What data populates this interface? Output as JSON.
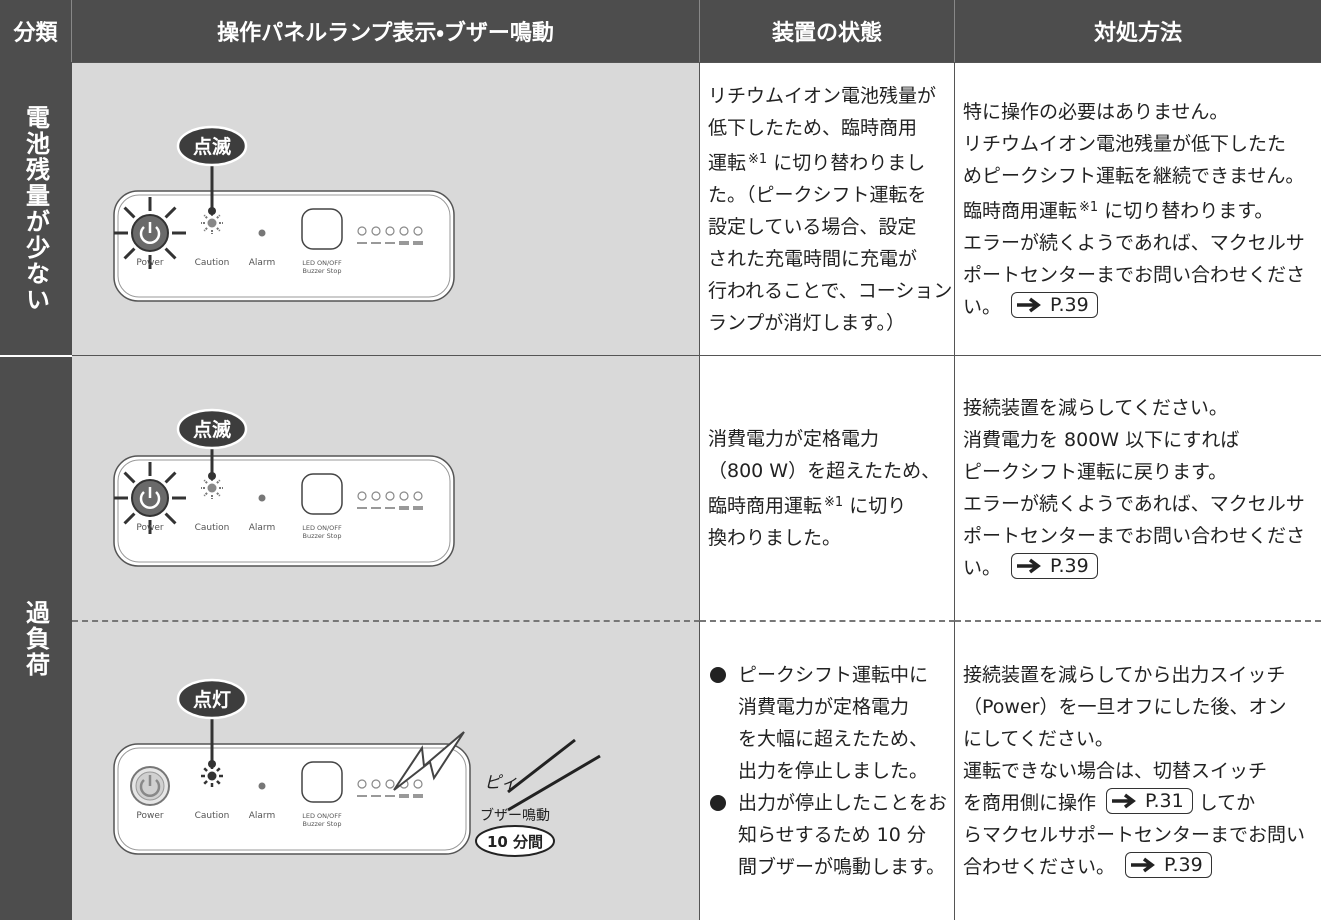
{
  "header": {
    "columns": [
      "分類",
      "操作パネルランプ表示・ブザー鳴動",
      "装置の状態",
      "対処方法"
    ]
  },
  "categories": [
    "電池残量が少ない",
    "過負荷"
  ],
  "panel_labels": {
    "power": "Power",
    "caution": "Caution",
    "alarm": "Alarm",
    "led": "LED ON/OFF",
    "buzzer": "Buzzer Stop"
  },
  "rows": [
    {
      "badge": "点滅",
      "status": [
        "リチウムイオン電池残量が",
        "低下したため、臨時商用",
        [
          {
            "text": "運転"
          },
          {
            "sup": "※1"
          },
          {
            "text": " に切り替わりまし"
          }
        ],
        "た。（ピークシフト運転を",
        "設定している場合、設定",
        "された充電時間に充電が",
        "行われることで、コーション",
        "ランプが消灯します。）"
      ],
      "action": [
        "特に操作の必要はありません。",
        "リチウムイオン電池残量が低下したた",
        "めピークシフト運転を継続できません。",
        [
          {
            "text": "臨時商用運転"
          },
          {
            "sup": "※1"
          },
          {
            "text": " に切り替わります。"
          }
        ],
        "エラーが続くようであれば、マクセルサ",
        "ポートセンターまでお問い合わせくださ",
        [
          {
            "text": "い。"
          },
          {
            "ref": "P.39"
          }
        ]
      ]
    },
    {
      "badge": "点滅",
      "status": [
        "消費電力が定格電力",
        "（800 W）を超えたため、",
        [
          {
            "text": "臨時商用運転"
          },
          {
            "sup": "※1"
          },
          {
            "text": " に切り"
          }
        ],
        "換わりました。"
      ],
      "action": [
        "接続装置を減らしてください。",
        "消費電力を 800W 以下にすれば",
        "ピークシフト運転に戻ります。",
        "エラーが続くようであれば、マクセルサ",
        "ポートセンターまでお問い合わせくださ",
        [
          {
            "text": "い。"
          },
          {
            "ref": "P.39"
          }
        ]
      ]
    },
    {
      "badge": "点灯",
      "buzzer": {
        "sound": "ピィ",
        "label": "ブザー鳴動",
        "duration": "10 分間"
      },
      "status_bullets": [
        [
          "ピークシフト運転中に",
          "消費電力が定格電力",
          "を大幅に超えたため、",
          "出力を停止しました。"
        ],
        [
          "出力が停止したことをお",
          "知らせするため 10 分",
          "間ブザーが鳴動します。"
        ]
      ],
      "action": [
        "接続装置を減らしてから出力スイッチ",
        "（Power）を一旦オフにした後、オン",
        "にしてください。",
        "運転できない場合は、切替スイッチ",
        [
          {
            "text": "を商用側に操作"
          },
          {
            "ref": "P.31"
          },
          {
            "text": "してか"
          }
        ],
        "らマクセルサポートセンターまでお問い",
        [
          {
            "text": "合わせください。"
          },
          {
            "ref": "P.39"
          }
        ]
      ]
    }
  ]
}
